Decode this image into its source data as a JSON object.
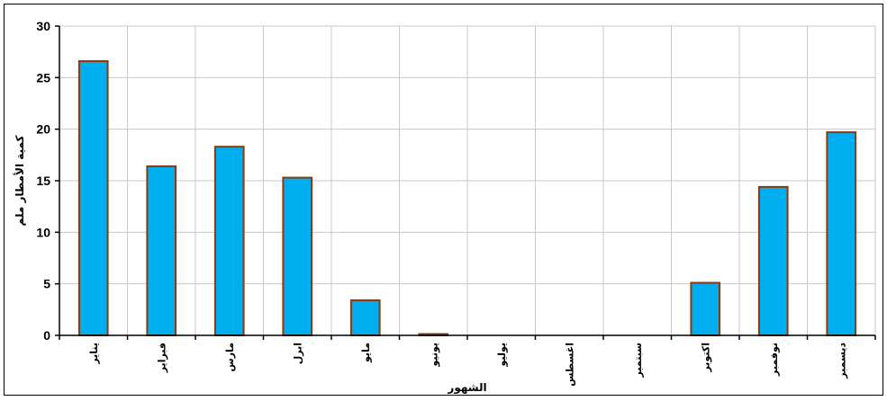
{
  "chart_data": {
    "type": "bar",
    "title": "",
    "xlabel": "الشهور",
    "ylabel": "كمية الأمطار ملم",
    "categories": [
      "يناير",
      "فبراير",
      "مارس",
      "ابرل",
      "مايو",
      "يونيو",
      "يوليو",
      "اغسطس",
      "سبتمبر",
      "اكتوبر",
      "نوفمبر",
      "ديسمبر"
    ],
    "values": [
      26.6,
      16.4,
      18.3,
      15.3,
      3.4,
      0.1,
      0,
      0,
      0,
      5.1,
      14.4,
      19.7
    ],
    "ylim": [
      0,
      30
    ],
    "yticks": [
      "0",
      "5",
      "10",
      "15",
      "20",
      "25",
      "30"
    ],
    "grid": true,
    "legend": "none",
    "colors": {
      "bar_fill": "#00aeef",
      "bar_stroke": "#8b3a0e",
      "grid": "#c8c8c8",
      "axis": "#000000"
    }
  }
}
